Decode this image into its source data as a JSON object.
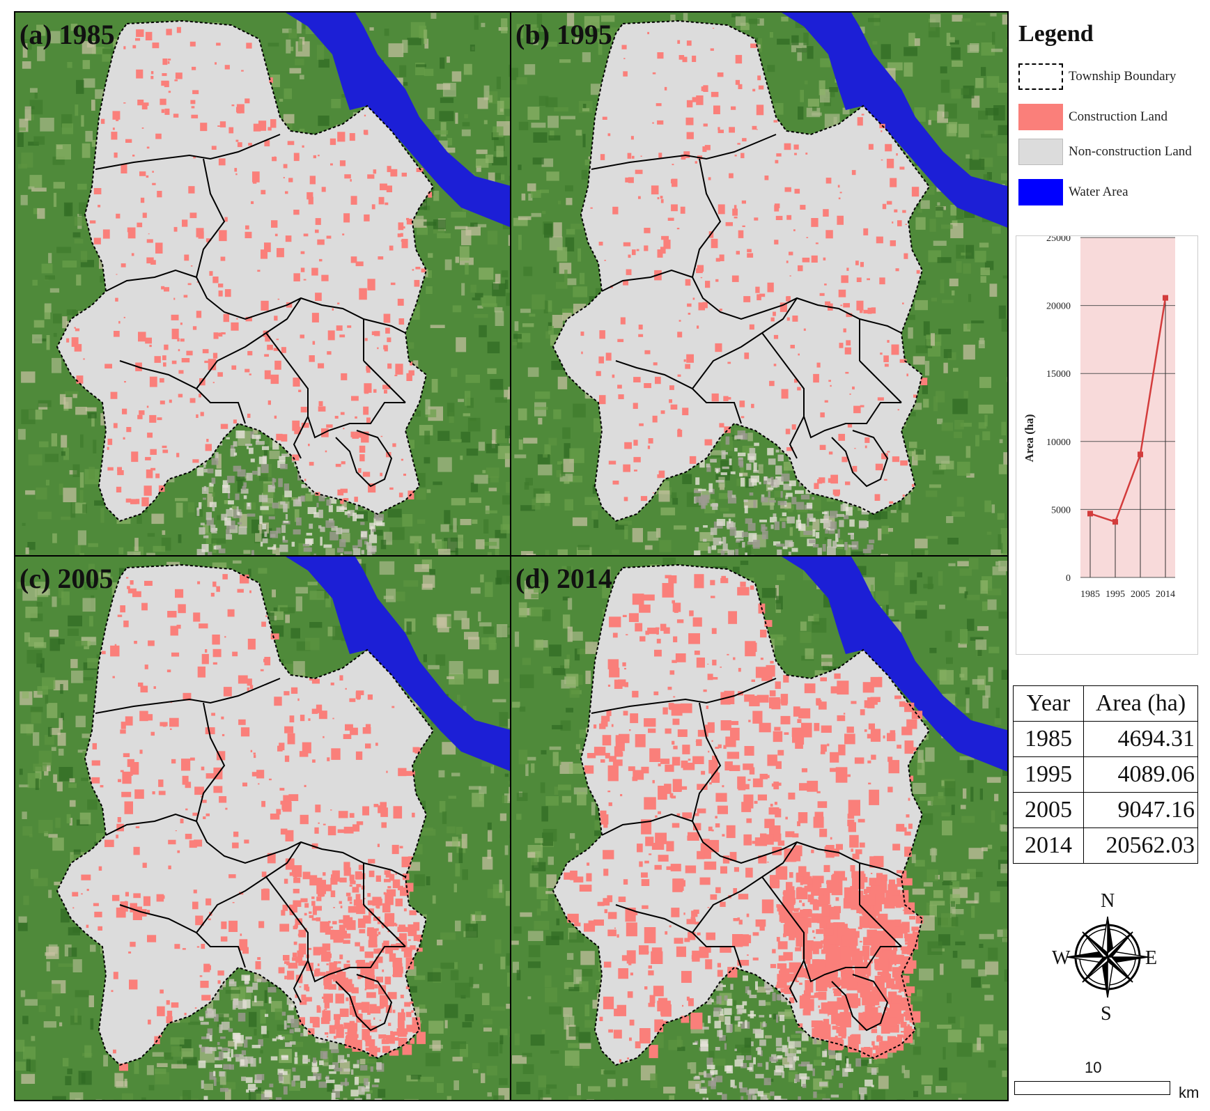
{
  "panels": [
    {
      "title": "(a) 1985",
      "density": 0.6
    },
    {
      "title": "(b) 1995",
      "density": 0.5
    },
    {
      "title": "(c) 2005",
      "density": 1.0
    },
    {
      "title": "(d) 2014",
      "density": 1.6
    }
  ],
  "legend": {
    "title": "Legend",
    "items": [
      {
        "label": "Township Boundary",
        "swatch": "#ffffff",
        "style": "dashed"
      },
      {
        "label": "Construction Land",
        "swatch": "#fa7f7a",
        "style": "solid"
      },
      {
        "label": "Non-construction Land",
        "swatch": "#dcdcdc",
        "style": "solid"
      },
      {
        "label": "Water Area",
        "swatch": "#0000ff",
        "style": "solid"
      }
    ]
  },
  "colors": {
    "construction": "#fa7f7a",
    "non_construction": "#dcdcdc",
    "water": "#1c1fd6",
    "vegetation": "#4f8a3a",
    "chart_fill": "#f8dada",
    "chart_line": "#d33c3c"
  },
  "chart_data": {
    "type": "line",
    "x": [
      "1985",
      "1995",
      "2005",
      "2014"
    ],
    "series": [
      {
        "values": [
          4694.31,
          4089.06,
          9047.16,
          20562.03
        ]
      }
    ],
    "ylabel": "Area (ha)",
    "ylim": [
      0,
      25000
    ],
    "yticks": [
      "0",
      "5000",
      "10000",
      "15000",
      "20000",
      "25000"
    ],
    "grid": true
  },
  "table": {
    "headers": [
      "Year",
      "Area (ha)"
    ],
    "rows": [
      [
        "1985",
        "4694.31"
      ],
      [
        "1995",
        "4089.06"
      ],
      [
        "2005",
        "9047.16"
      ],
      [
        "2014",
        "20562.03"
      ]
    ]
  },
  "compass": {
    "n": "N",
    "s": "S",
    "e": "E",
    "w": "W"
  },
  "scale": {
    "value": "10",
    "unit": "km"
  }
}
